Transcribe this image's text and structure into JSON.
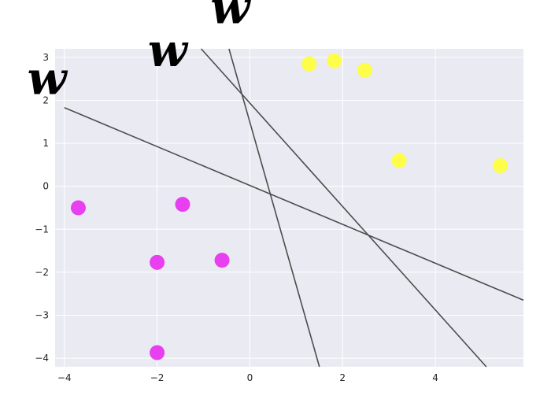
{
  "chart_data": {
    "type": "scatter",
    "title": "",
    "xlabel": "",
    "ylabel": "",
    "xlim": [
      -4.2,
      5.9
    ],
    "ylim": [
      -4.2,
      3.2
    ],
    "grid": true,
    "background": "#EAEAF2",
    "grid_color": "#FFFFFF",
    "line_color": "#4D4D4D",
    "x_ticks": [
      {
        "value": -4,
        "label": "−4"
      },
      {
        "value": -2,
        "label": "−2"
      },
      {
        "value": 0,
        "label": "0"
      },
      {
        "value": 2,
        "label": "2"
      },
      {
        "value": 4,
        "label": "4"
      }
    ],
    "y_ticks": [
      {
        "value": -4,
        "label": "−4"
      },
      {
        "value": -3,
        "label": "−3"
      },
      {
        "value": -2,
        "label": "−2"
      },
      {
        "value": -1,
        "label": "−1"
      },
      {
        "value": 0,
        "label": "0"
      },
      {
        "value": 1,
        "label": "1"
      },
      {
        "value": 2,
        "label": "2"
      },
      {
        "value": 3,
        "label": "3"
      }
    ],
    "series": [
      {
        "color": "#E83FF0",
        "points": [
          {
            "x": -3.7,
            "y": -0.5
          },
          {
            "x": -1.45,
            "y": -0.42
          },
          {
            "x": -2.0,
            "y": -1.77
          },
          {
            "x": -0.6,
            "y": -1.72
          },
          {
            "x": -2.0,
            "y": -3.87
          }
        ]
      },
      {
        "color": "#FDFD4A",
        "points": [
          {
            "x": 1.28,
            "y": 2.85
          },
          {
            "x": 1.82,
            "y": 2.92
          },
          {
            "x": 2.48,
            "y": 2.7
          },
          {
            "x": 3.22,
            "y": 0.6
          },
          {
            "x": 5.4,
            "y": 0.48
          }
        ]
      }
    ],
    "lines": [
      {
        "x1": -4.0,
        "y1": 1.83,
        "x2": 5.9,
        "y2": -2.65
      },
      {
        "x1": -1.05,
        "y1": 3.2,
        "x2": 5.1,
        "y2": -4.2
      },
      {
        "x1": -0.45,
        "y1": 3.2,
        "x2": 1.5,
        "y2": -4.2
      }
    ],
    "annotations": [
      {
        "text": "w",
        "x": -4.8,
        "y": 2.15
      },
      {
        "text": "w",
        "x": -2.2,
        "y": 2.8
      },
      {
        "text": "w",
        "x": -0.85,
        "y": 3.8
      }
    ]
  }
}
